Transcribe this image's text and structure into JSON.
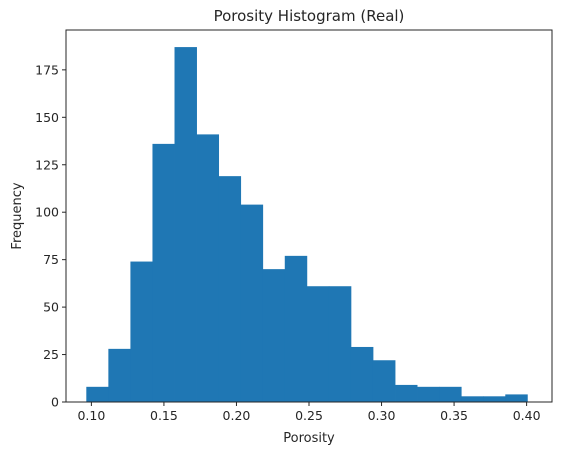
{
  "chart_data": {
    "type": "bar",
    "title": "Porosity Histogram (Real)",
    "xlabel": "Porosity",
    "ylabel": "Frequency",
    "xlim": [
      0.0825,
      0.4175
    ],
    "ylim": [
      0,
      196
    ],
    "grid": false,
    "bar_color": "#1f77b4",
    "bin_edges": [
      0.0965,
      0.1117,
      0.1269,
      0.1421,
      0.1573,
      0.1725,
      0.1877,
      0.2029,
      0.2181,
      0.2333,
      0.2485,
      0.2637,
      0.2789,
      0.2941,
      0.3093,
      0.3245,
      0.3397,
      0.3549,
      0.3701,
      0.3853,
      0.4005
    ],
    "values": [
      8,
      28,
      74,
      136,
      187,
      141,
      119,
      104,
      70,
      77,
      61,
      61,
      29,
      22,
      9,
      8,
      8,
      3,
      3,
      4
    ],
    "xticks": [
      0.1,
      0.15,
      0.2,
      0.25,
      0.3,
      0.35,
      0.4
    ],
    "xtick_labels": [
      "0.10",
      "0.15",
      "0.20",
      "0.25",
      "0.30",
      "0.35",
      "0.40"
    ],
    "yticks": [
      0,
      25,
      50,
      75,
      100,
      125,
      150,
      175
    ],
    "ytick_labels": [
      "0",
      "25",
      "50",
      "75",
      "100",
      "125",
      "150",
      "175"
    ]
  }
}
